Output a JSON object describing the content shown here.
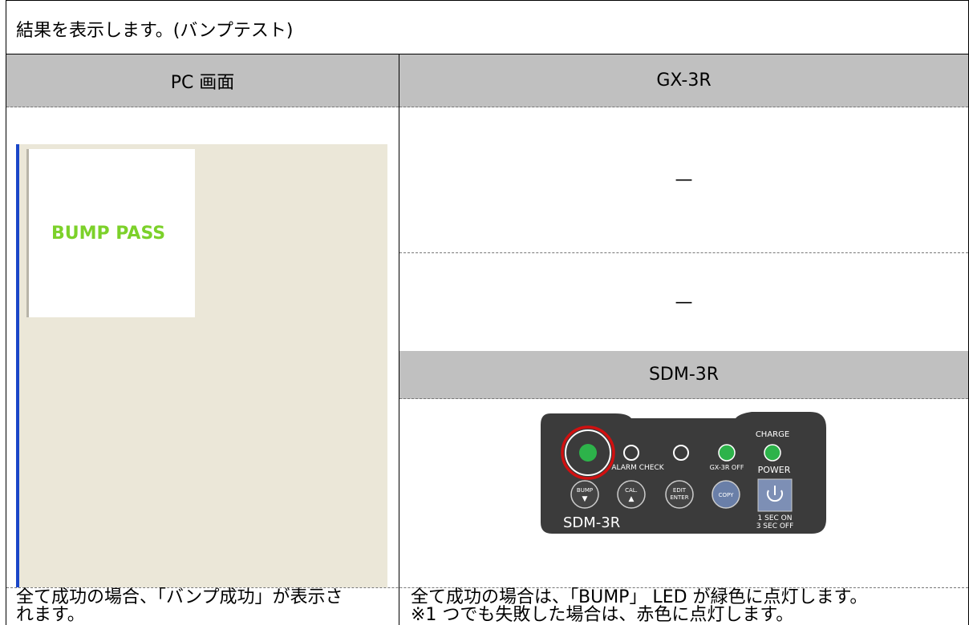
{
  "title": "結果を表示します。(バンプテスト)",
  "headers": {
    "pc": "PC 画面",
    "gx": "GX-3R",
    "sdm": "SDM-3R"
  },
  "pc_screen": {
    "message": "BUMP PASS"
  },
  "gx_cells": [
    "—",
    "—"
  ],
  "device": {
    "charge": "CHARGE",
    "alarm_check": "ALARM CHECK",
    "gx_off": "GX-3R OFF",
    "power": "POWER",
    "buttons": [
      [
        "BUMP",
        "▼"
      ],
      [
        "CAL.",
        "▲"
      ],
      [
        "EDIT",
        "ENTER"
      ],
      [
        "COPY"
      ]
    ],
    "model": "SDM-3R",
    "power_note": [
      "1 SEC ON",
      "3 SEC OFF"
    ]
  },
  "notes": {
    "pc": [
      "全て成功の場合、「バンプ成功」が表示さ",
      "れます。"
    ],
    "sdm": [
      "全て成功の場合は、「BUMP」 LED が緑色に点灯します。",
      "※1 つでも失敗した場合は、赤色に点灯します。"
    ]
  }
}
